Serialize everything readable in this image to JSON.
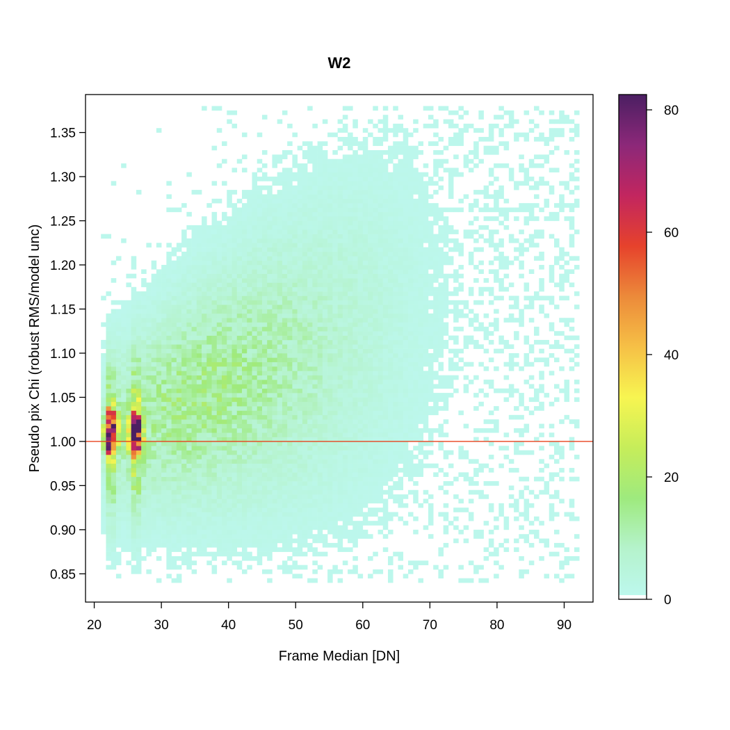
{
  "chart_data": {
    "type": "heatmap",
    "title": "W2",
    "xlabel": "Frame Median [DN]",
    "ylabel": "Pseudo pix Chi (robust RMS/model unc)",
    "xlim": [
      18.7,
      94.3
    ],
    "ylim": [
      0.818,
      1.393
    ],
    "x_ticks": [
      "20",
      "30",
      "40",
      "50",
      "60",
      "70",
      "80",
      "90"
    ],
    "y_ticks": [
      "0.85",
      "0.90",
      "0.95",
      "1.00",
      "1.05",
      "1.10",
      "1.15",
      "1.20",
      "1.25",
      "1.30",
      "1.35"
    ],
    "reference_line": {
      "y": 1.0,
      "color": "#e8401c"
    },
    "colorbar": {
      "range": [
        0,
        82.5
      ],
      "ticks": [
        "0",
        "20",
        "40",
        "60",
        "80"
      ],
      "colors": [
        "#bdf8f0",
        "#b5f3cc",
        "#9eea7e",
        "#c6ed5a",
        "#f7f551",
        "#f6c046",
        "#ec8a3a",
        "#e6422c",
        "#c2265f",
        "#8c2879",
        "#4b1f62"
      ]
    },
    "bin_size": {
      "x": 0.75,
      "y": 0.005
    },
    "density": {
      "x_extent": [
        21,
        92
      ],
      "y_extent": [
        0.84,
        1.375
      ],
      "grid": "log-normal cloud widening and rising with x",
      "peaks": [
        {
          "x": 22.5,
          "y": 1.01,
          "count": 82
        },
        {
          "x": 26.2,
          "y": 1.01,
          "count": 82
        }
      ]
    }
  }
}
